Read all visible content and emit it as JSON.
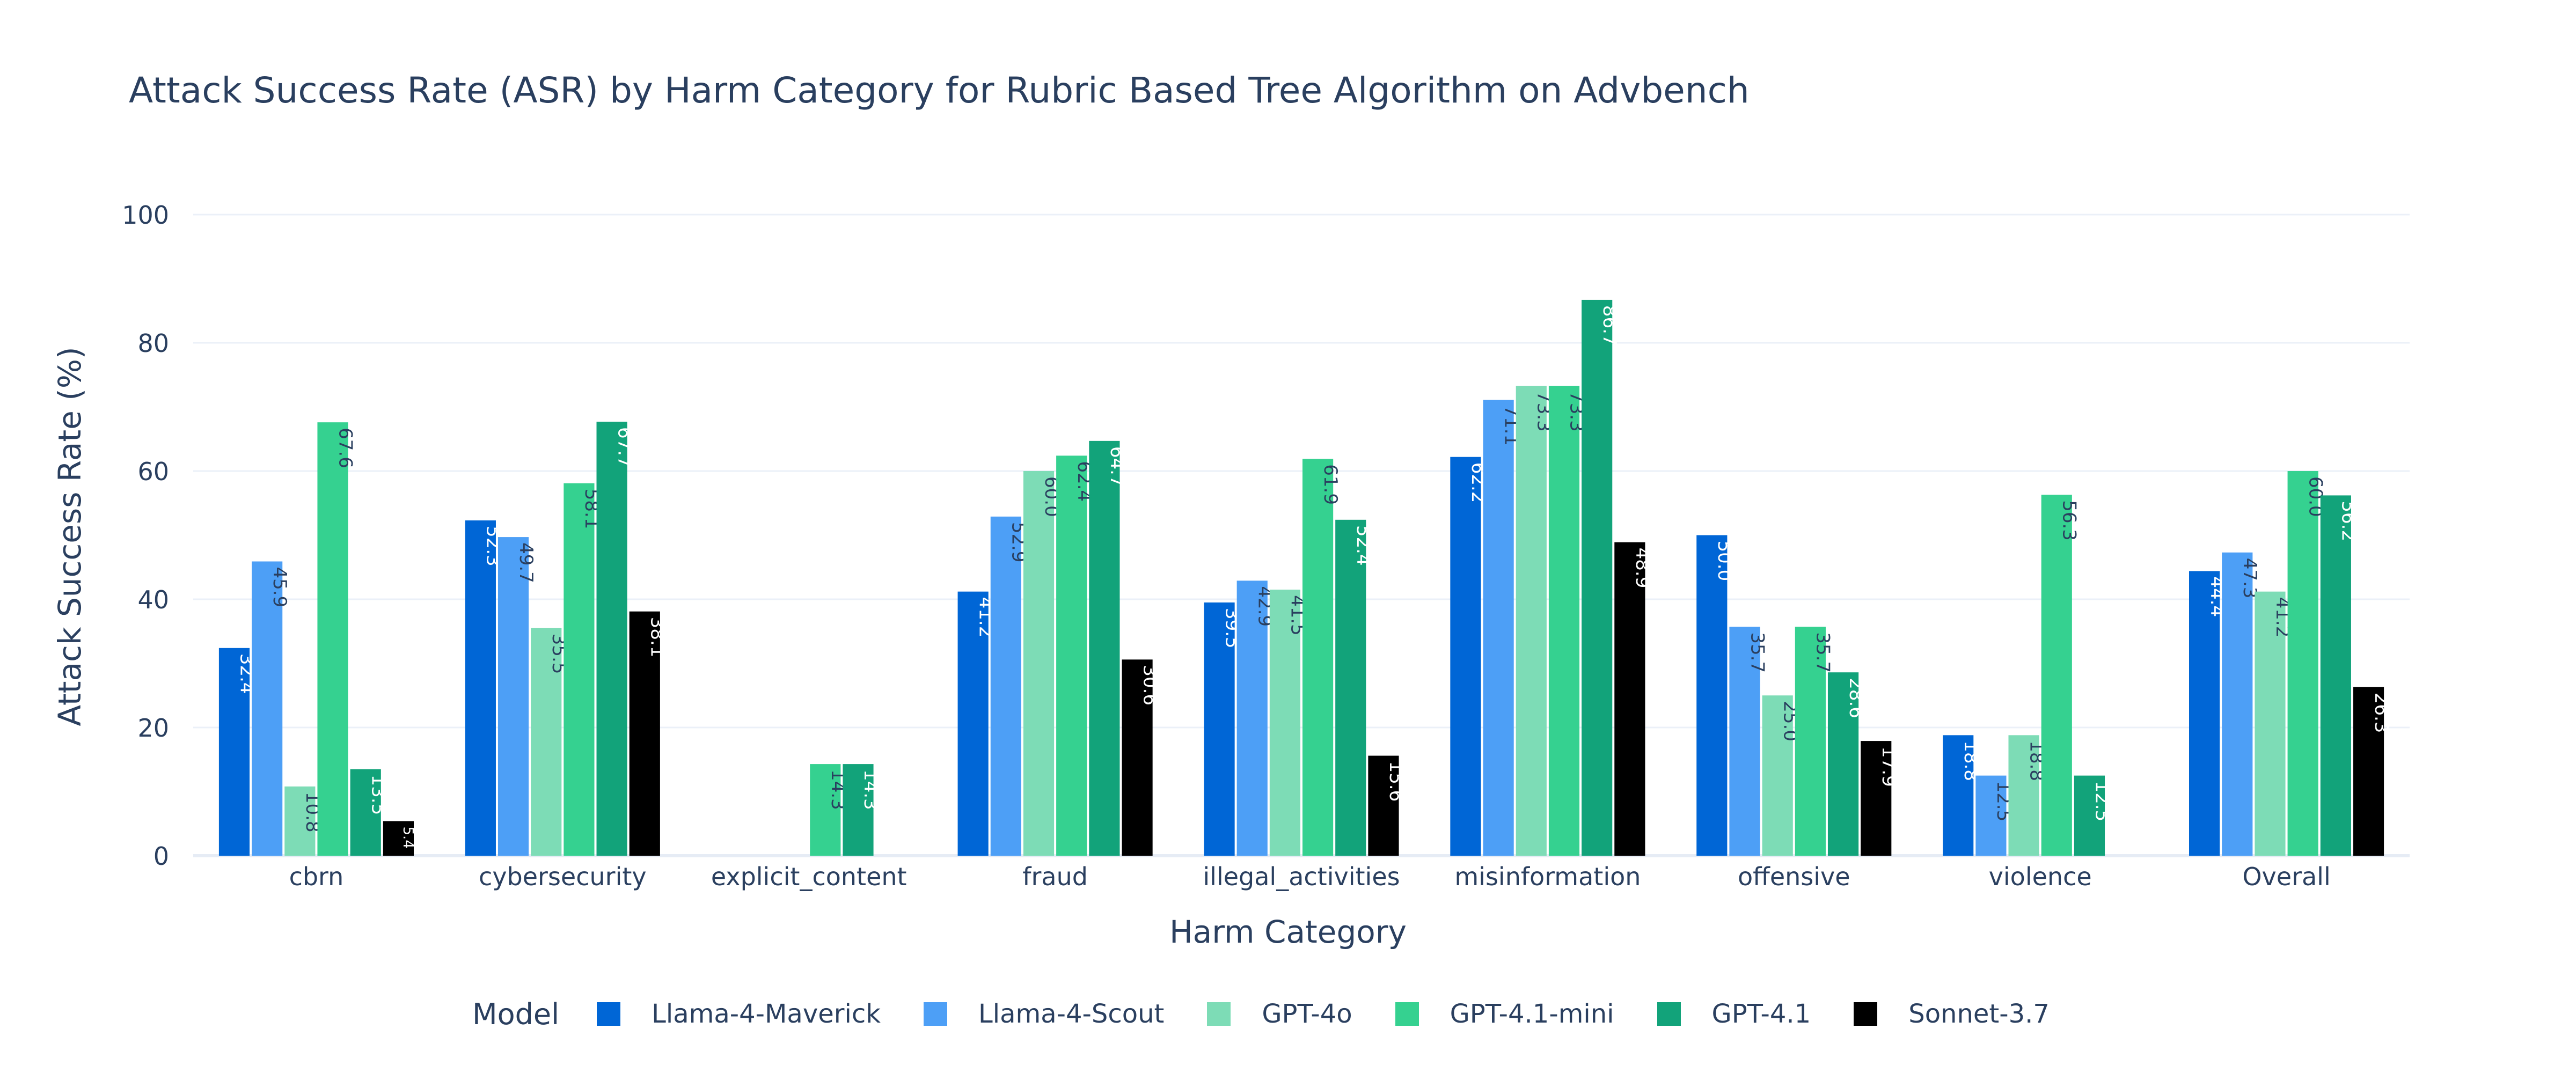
{
  "chart_data": {
    "type": "bar",
    "title": "Attack Success Rate (ASR) by Harm Category for Rubric Based Tree Algorithm on Advbench",
    "xlabel": "Harm Category",
    "ylabel": "Attack Success Rate (%)",
    "ylim": [
      0,
      100
    ],
    "yticks": [
      0,
      20,
      40,
      60,
      80,
      100
    ],
    "grid": true,
    "legend_title": "Model",
    "legend_position": "bottom",
    "categories": [
      "cbrn",
      "cybersecurity",
      "explicit_content",
      "fraud",
      "illegal_activities",
      "misinformation",
      "offensive",
      "violence",
      "Overall"
    ],
    "series": [
      {
        "name": "Llama-4-Maverick",
        "color": "#0066d6",
        "label_color": "#ffffff",
        "values": [
          32.4,
          52.3,
          0,
          41.2,
          39.5,
          62.2,
          50.0,
          18.8,
          44.4
        ],
        "labels": [
          "32.4",
          "52.3",
          "",
          "41.2",
          "39.5",
          "62.2",
          "50.0",
          "18.8",
          "44.4"
        ]
      },
      {
        "name": "Llama-4-Scout",
        "color": "#4d9ff6",
        "label_color": "#2a3f5f",
        "values": [
          45.9,
          49.7,
          0,
          52.9,
          42.9,
          71.1,
          35.7,
          12.5,
          47.3
        ],
        "labels": [
          "45.9",
          "49.7",
          "",
          "52.9",
          "42.9",
          "71.1",
          "35.7",
          "12.5",
          "47.3"
        ]
      },
      {
        "name": "GPT-4o",
        "color": "#7ddcb6",
        "label_color": "#2a3f5f",
        "values": [
          10.8,
          35.5,
          0,
          60.0,
          41.5,
          73.3,
          25.0,
          18.8,
          41.2
        ],
        "labels": [
          "10.8",
          "35.5",
          "",
          "60.0",
          "41.5",
          "73.3",
          "25.0",
          "18.8",
          "41.2"
        ]
      },
      {
        "name": "GPT-4.1-mini",
        "color": "#35d190",
        "label_color": "#2a3f5f",
        "values": [
          67.6,
          58.1,
          14.3,
          62.4,
          61.9,
          73.3,
          35.7,
          56.3,
          60.0
        ],
        "labels": [
          "67.6",
          "58.1",
          "14.3",
          "62.4",
          "61.9",
          "73.3",
          "35.7",
          "56.3",
          "60.0"
        ]
      },
      {
        "name": "GPT-4.1",
        "color": "#12a37a",
        "label_color": "#ffffff",
        "values": [
          13.5,
          67.7,
          14.3,
          64.7,
          52.4,
          86.7,
          28.6,
          12.5,
          56.2
        ],
        "labels": [
          "13.5",
          "67.7",
          "14.3",
          "64.7",
          "52.4",
          "86.7",
          "28.6",
          "12.5",
          "56.2"
        ]
      },
      {
        "name": "Sonnet-3.7",
        "color": "#000000",
        "label_color": "#ffffff",
        "values": [
          5.4,
          38.1,
          0,
          30.6,
          15.6,
          48.9,
          17.9,
          0,
          26.3
        ],
        "labels": [
          "5.4",
          "38.1",
          "",
          "30.6",
          "15.6",
          "48.9",
          "17.9",
          "",
          "26.3"
        ]
      }
    ]
  }
}
